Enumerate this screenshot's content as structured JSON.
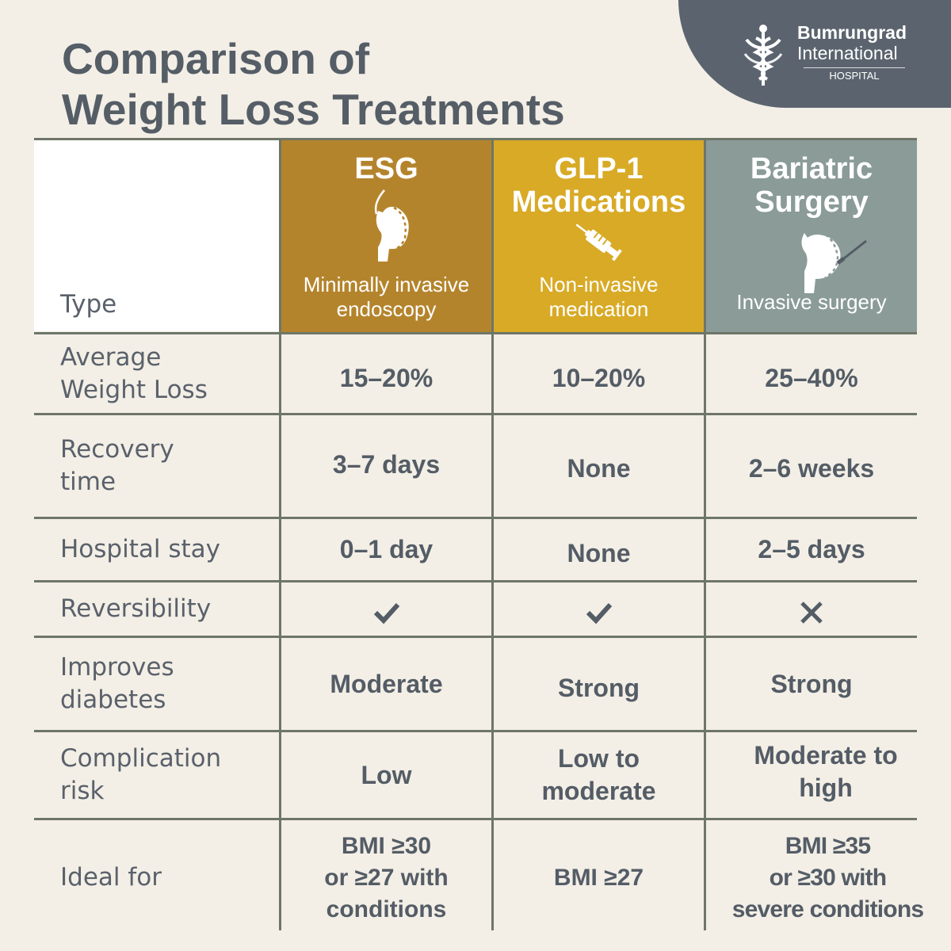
{
  "title": {
    "line1": "Comparison of",
    "line2": "Weight Loss Treatments"
  },
  "logo": {
    "line1": "Bumrungrad",
    "line2": "International",
    "line3": "HOSPITAL"
  },
  "colors": {
    "esg": "#b4842c",
    "glp1": "#d8aa26",
    "bariatric": "#8a9b98",
    "background": "#f3efe6",
    "text": "#545c66"
  },
  "columns": [
    {
      "name_lines": [
        "ESG"
      ],
      "icon": "stomach-sleeve-icon",
      "sub_lines": [
        "Minimally invasive",
        "endoscopy"
      ]
    },
    {
      "name_lines": [
        "GLP-1",
        "Medications"
      ],
      "icon": "syringe-icon",
      "sub_lines": [
        "Non-invasive",
        "medication"
      ]
    },
    {
      "name_lines": [
        "Bariatric",
        "Surgery"
      ],
      "icon": "stomach-surgery-icon",
      "sub_lines": [
        "Invasive surgery"
      ]
    }
  ],
  "type_label": "Type",
  "rows": [
    {
      "label": [
        "Average",
        "Weight Loss"
      ],
      "values": [
        [
          "15–20%"
        ],
        [
          "10–20%"
        ],
        [
          "25–40%"
        ]
      ]
    },
    {
      "label": [
        "Recovery",
        "time"
      ],
      "values": [
        [
          "3–7 days"
        ],
        [
          "None"
        ],
        [
          "2–6 weeks"
        ]
      ]
    },
    {
      "label": [
        "Hospital stay"
      ],
      "values": [
        [
          "0–1 day"
        ],
        [
          "None"
        ],
        [
          "2–5 days"
        ]
      ]
    },
    {
      "label": [
        "Reversibility"
      ],
      "values": [
        [
          "check-icon"
        ],
        [
          "check-icon"
        ],
        [
          "cross-icon"
        ]
      ]
    },
    {
      "label": [
        "Improves",
        "diabetes"
      ],
      "values": [
        [
          "Moderate"
        ],
        [
          "Strong"
        ],
        [
          "Strong"
        ]
      ]
    },
    {
      "label": [
        "Complication",
        "risk"
      ],
      "values": [
        [
          "Low"
        ],
        [
          "Low to",
          "moderate"
        ],
        [
          "Moderate to",
          "high"
        ]
      ]
    },
    {
      "label": [
        "Ideal for"
      ],
      "values": [
        [
          "BMI ≥30",
          "or ≥27 with",
          "conditions"
        ],
        [
          "BMI ≥27"
        ],
        [
          "BMI ≥35",
          "or ≥30 with",
          "severe conditions"
        ]
      ]
    }
  ]
}
